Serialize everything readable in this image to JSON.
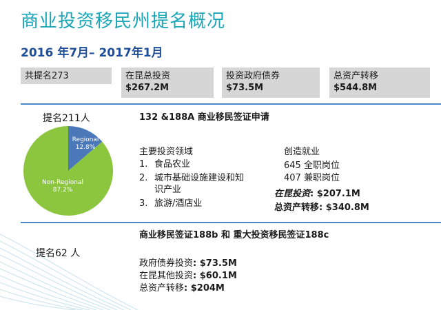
{
  "header": {
    "title": "商业投资移民州提名概况",
    "subtitle": "2016 年7月– 2017年1月"
  },
  "summary": {
    "total_label": "共提名273",
    "boxes": [
      {
        "label": "在昆总投资",
        "value": "$267.2M"
      },
      {
        "label": "投资政府债券",
        "value": "$73.5M"
      },
      {
        "label": "总资产转移",
        "value": "$544.8M"
      }
    ]
  },
  "section1": {
    "nominations": "提名211人",
    "heading": "132 &188A 商业移民签证申请",
    "sectors_title": "主要投资领域",
    "sectors": [
      {
        "num": "1.",
        "text": "食品农业"
      },
      {
        "num": "2.",
        "text": "城市基础设施建设和知\n识产业"
      },
      {
        "num": "3.",
        "text": "旅游/酒店业"
      }
    ],
    "jobs_title": "创造就业",
    "jobs_full": "645 全职岗位",
    "jobs_part": "407 兼职岗位",
    "invest_label": "在昆投资",
    "invest_value": ": $207.1M",
    "assets_label": "总资产转移",
    "assets_value": ": $340.8M"
  },
  "pie": {
    "slices": [
      {
        "label": "Regional",
        "pct": "12.8%",
        "value": 12.8,
        "color": "#4a78b8"
      },
      {
        "label": "Non-Regional",
        "pct": "87.2%",
        "value": 87.2,
        "color": "#8cc63f"
      }
    ]
  },
  "section2": {
    "heading": "商业移民签证188b 和 重大投资移民签证188c",
    "nominations": "提名62 人",
    "bonds_label": "政府债券投资",
    "bonds_value": ": $73.5M",
    "other_label": "在昆其他投资",
    "other_value": ": $60.1M",
    "assets_label": "总资产转移",
    "assets_value": ": $204M"
  }
}
